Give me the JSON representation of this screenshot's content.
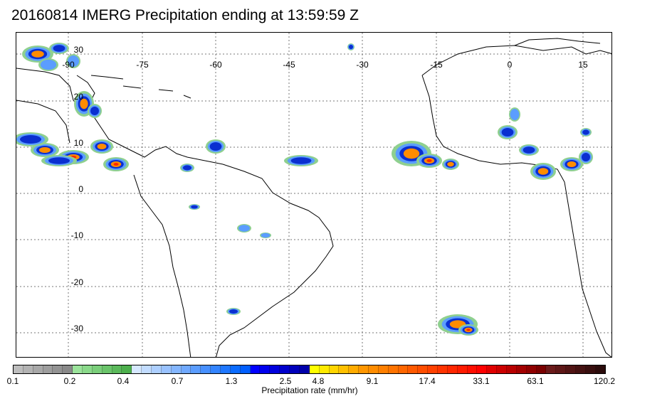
{
  "title": "20160814 IMERG Precipitation ending at 13:59:59 Z",
  "map": {
    "lon_labels": [
      "-90",
      "-75",
      "-60",
      "-45",
      "-30",
      "-15",
      "0",
      "15"
    ],
    "lat_labels": [
      "30",
      "20",
      "10",
      "0",
      "-10",
      "-20",
      "-30"
    ],
    "gridlines": true
  },
  "colorbar": {
    "label": "Precipitation rate (mm/hr)",
    "tick_labels": [
      "0.1",
      "0.2",
      "0.4",
      "0.7",
      "1.3",
      "2.5",
      "4.8",
      "9.1",
      "17.4",
      "33.1",
      "63.1",
      "120.2"
    ],
    "colors": [
      "#bdbdbd",
      "#b3b3b3",
      "#a8a8a8",
      "#9e9e9e",
      "#939393",
      "#898989",
      "#9be39b",
      "#8ad98a",
      "#7ace7a",
      "#6ac46a",
      "#5bb95b",
      "#4caf4c",
      "#d6e8ff",
      "#c2dcff",
      "#adcfff",
      "#99c2ff",
      "#84b6ff",
      "#70a9ff",
      "#5b9dff",
      "#4790ff",
      "#3384ff",
      "#1f77ff",
      "#0a6bff",
      "#005eff",
      "#0000ff",
      "#0000ee",
      "#0000dd",
      "#0000cc",
      "#0000bb",
      "#0000aa",
      "#ffff00",
      "#ffea00",
      "#ffd500",
      "#ffc000",
      "#ffab00",
      "#ff9600",
      "#ff8c00",
      "#ff7f00",
      "#ff7300",
      "#ff6600",
      "#ff5900",
      "#ff4d00",
      "#ff4000",
      "#ff3300",
      "#ff2600",
      "#ff1a00",
      "#ff0d00",
      "#ff0000",
      "#e00000",
      "#cc0000",
      "#b80000",
      "#a30000",
      "#8f0000",
      "#7a0000",
      "#6b1a1a",
      "#5e1717",
      "#511414",
      "#441111",
      "#380e0e",
      "#2b0b0b"
    ]
  }
}
